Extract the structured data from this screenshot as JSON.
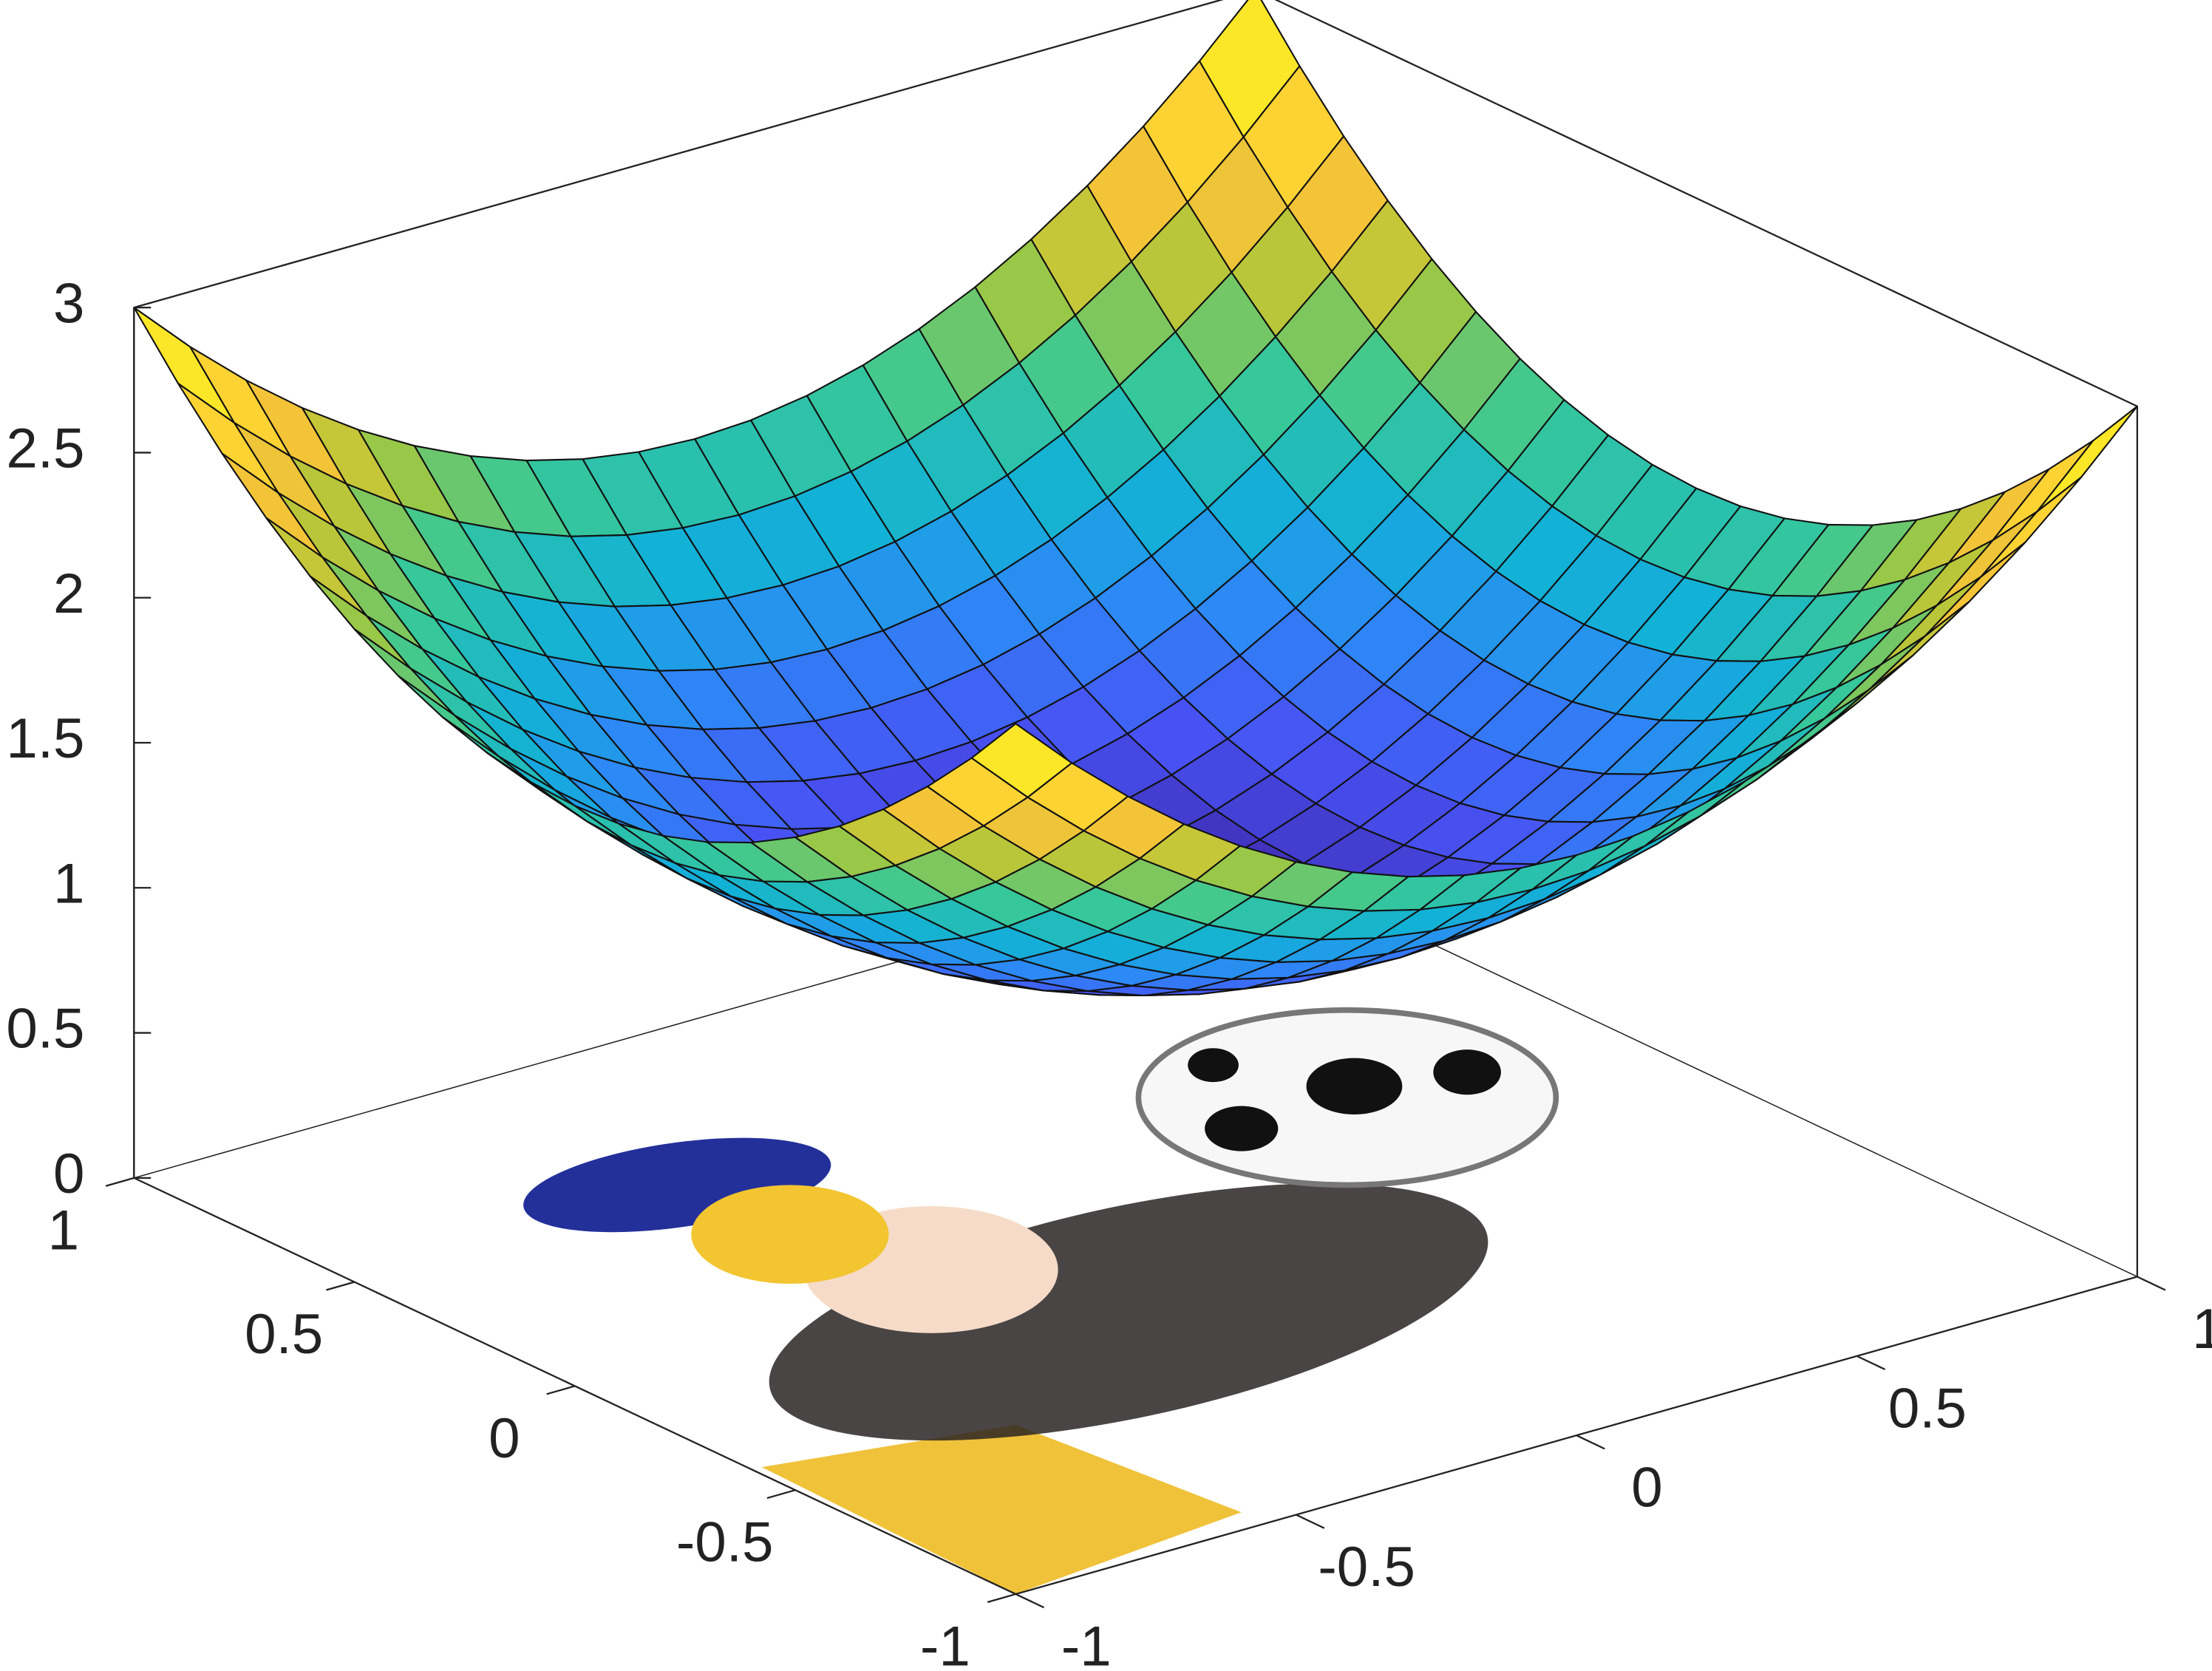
{
  "chart_data": {
    "type": "surface",
    "colormap": "parula",
    "x": [
      -1,
      -0.9,
      -0.8,
      -0.7,
      -0.6,
      -0.5,
      -0.4,
      -0.3,
      -0.2,
      -0.1,
      0,
      0.1,
      0.2,
      0.3,
      0.4,
      0.5,
      0.6,
      0.7,
      0.8,
      0.9,
      1
    ],
    "y": [
      -1,
      -0.9,
      -0.8,
      -0.7,
      -0.6,
      -0.5,
      -0.4,
      -0.3,
      -0.2,
      -0.1,
      0,
      0.1,
      0.2,
      0.3,
      0.4,
      0.5,
      0.6,
      0.7,
      0.8,
      0.9,
      1
    ],
    "z": [
      [
        3,
        2.81,
        2.64,
        2.49,
        2.36,
        2.25,
        2.16,
        2.09,
        2.04,
        2.01,
        2,
        2.01,
        2.04,
        2.09,
        2.16,
        2.25,
        2.36,
        2.49,
        2.64,
        2.81,
        3
      ],
      [
        2.81,
        2.62,
        2.45,
        2.3,
        2.17,
        2.06,
        1.97,
        1.9,
        1.85,
        1.82,
        1.81,
        1.82,
        1.85,
        1.9,
        1.97,
        2.06,
        2.17,
        2.3,
        2.45,
        2.62,
        2.81
      ],
      [
        2.64,
        2.45,
        2.28,
        2.13,
        2,
        1.89,
        1.8,
        1.73,
        1.68,
        1.65,
        1.64,
        1.65,
        1.68,
        1.73,
        1.8,
        1.89,
        2,
        2.13,
        2.28,
        2.45,
        2.64
      ],
      [
        2.49,
        2.3,
        2.13,
        1.98,
        1.85,
        1.74,
        1.65,
        1.58,
        1.53,
        1.5,
        1.49,
        1.5,
        1.53,
        1.58,
        1.65,
        1.74,
        1.85,
        1.98,
        2.13,
        2.3,
        2.49
      ],
      [
        2.36,
        2.17,
        2,
        1.85,
        1.72,
        1.61,
        1.52,
        1.45,
        1.4,
        1.37,
        1.36,
        1.37,
        1.4,
        1.45,
        1.52,
        1.61,
        1.72,
        1.85,
        2,
        2.17,
        2.36
      ],
      [
        2.25,
        2.06,
        1.89,
        1.74,
        1.61,
        1.5,
        1.41,
        1.34,
        1.29,
        1.26,
        1.25,
        1.26,
        1.29,
        1.34,
        1.41,
        1.5,
        1.61,
        1.74,
        1.89,
        2.06,
        2.25
      ],
      [
        2.16,
        1.97,
        1.8,
        1.65,
        1.52,
        1.41,
        1.32,
        1.25,
        1.2,
        1.17,
        1.16,
        1.17,
        1.2,
        1.25,
        1.32,
        1.41,
        1.52,
        1.65,
        1.8,
        1.97,
        2.16
      ],
      [
        2.09,
        1.9,
        1.73,
        1.58,
        1.45,
        1.34,
        1.25,
        1.18,
        1.13,
        1.1,
        1.09,
        1.1,
        1.13,
        1.18,
        1.25,
        1.34,
        1.45,
        1.58,
        1.73,
        1.9,
        2.09
      ],
      [
        2.04,
        1.85,
        1.68,
        1.53,
        1.4,
        1.29,
        1.2,
        1.13,
        1.08,
        1.05,
        1.04,
        1.05,
        1.08,
        1.13,
        1.2,
        1.29,
        1.4,
        1.53,
        1.68,
        1.85,
        2.04
      ],
      [
        2.01,
        1.82,
        1.65,
        1.5,
        1.37,
        1.26,
        1.17,
        1.1,
        1.05,
        1.02,
        1.01,
        1.02,
        1.05,
        1.1,
        1.17,
        1.26,
        1.37,
        1.5,
        1.65,
        1.82,
        2.01
      ],
      [
        2,
        1.81,
        1.64,
        1.49,
        1.36,
        1.25,
        1.16,
        1.09,
        1.04,
        1.01,
        1,
        1.01,
        1.04,
        1.09,
        1.16,
        1.25,
        1.36,
        1.49,
        1.64,
        1.81,
        2
      ],
      [
        2.01,
        1.82,
        1.65,
        1.5,
        1.37,
        1.26,
        1.17,
        1.1,
        1.05,
        1.02,
        1.01,
        1.02,
        1.05,
        1.1,
        1.17,
        1.26,
        1.37,
        1.5,
        1.65,
        1.82,
        2.01
      ],
      [
        2.04,
        1.85,
        1.68,
        1.53,
        1.4,
        1.29,
        1.2,
        1.13,
        1.08,
        1.05,
        1.04,
        1.05,
        1.08,
        1.13,
        1.2,
        1.29,
        1.4,
        1.53,
        1.68,
        1.85,
        2.04
      ],
      [
        2.09,
        1.9,
        1.73,
        1.58,
        1.45,
        1.34,
        1.25,
        1.18,
        1.13,
        1.1,
        1.09,
        1.1,
        1.13,
        1.18,
        1.25,
        1.34,
        1.45,
        1.58,
        1.73,
        1.9,
        2.09
      ],
      [
        2.16,
        1.97,
        1.8,
        1.65,
        1.52,
        1.41,
        1.32,
        1.25,
        1.2,
        1.17,
        1.16,
        1.17,
        1.2,
        1.25,
        1.32,
        1.41,
        1.52,
        1.65,
        1.8,
        1.97,
        2.16
      ],
      [
        2.25,
        2.06,
        1.89,
        1.74,
        1.61,
        1.5,
        1.41,
        1.34,
        1.29,
        1.26,
        1.25,
        1.26,
        1.29,
        1.34,
        1.41,
        1.5,
        1.61,
        1.74,
        1.89,
        2.06,
        2.25
      ],
      [
        2.36,
        2.17,
        2,
        1.85,
        1.72,
        1.61,
        1.52,
        1.45,
        1.4,
        1.37,
        1.36,
        1.37,
        1.4,
        1.45,
        1.52,
        1.61,
        1.72,
        1.85,
        2,
        2.17,
        2.36
      ],
      [
        2.49,
        2.3,
        2.13,
        1.98,
        1.85,
        1.74,
        1.65,
        1.58,
        1.53,
        1.5,
        1.49,
        1.5,
        1.53,
        1.58,
        1.65,
        1.74,
        1.85,
        1.98,
        2.13,
        2.3,
        2.49
      ],
      [
        2.64,
        2.45,
        2.28,
        2.13,
        2,
        1.89,
        1.8,
        1.73,
        1.68,
        1.65,
        1.64,
        1.65,
        1.68,
        1.73,
        1.8,
        1.89,
        2,
        2.13,
        2.28,
        2.45,
        2.64
      ],
      [
        2.81,
        2.62,
        2.45,
        2.3,
        2.17,
        2.06,
        1.97,
        1.9,
        1.85,
        1.82,
        1.81,
        1.82,
        1.85,
        1.9,
        1.97,
        2.06,
        2.17,
        2.3,
        2.45,
        2.62,
        2.81
      ],
      [
        3,
        2.81,
        2.64,
        2.49,
        2.36,
        2.25,
        2.16,
        2.09,
        2.04,
        2.01,
        2,
        2.01,
        2.04,
        2.09,
        2.16,
        2.25,
        2.36,
        2.49,
        2.64,
        2.81,
        3
      ]
    ],
    "xlim": [
      -1,
      1
    ],
    "xticks": [
      -1,
      -0.5,
      0,
      0.5,
      1
    ],
    "ylim": [
      -1,
      1
    ],
    "yticks": [
      -1,
      -0.5,
      0,
      0.5,
      1
    ],
    "zlim": [
      0,
      3
    ],
    "zticks": [
      0,
      0.5,
      1,
      1.5,
      2,
      2.5,
      3
    ]
  }
}
